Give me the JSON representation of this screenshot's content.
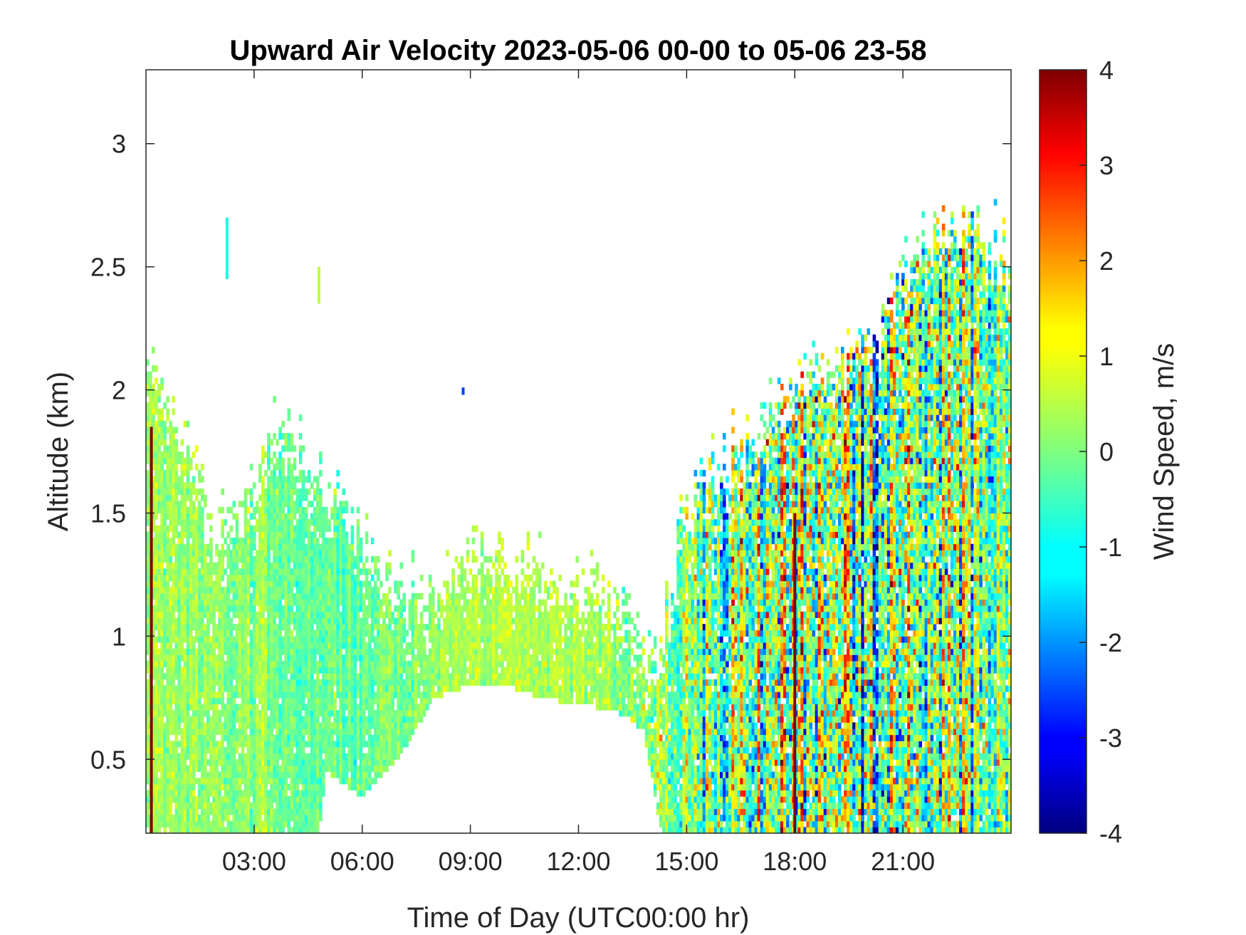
{
  "chart_data": {
    "type": "heatmap",
    "title": "Upward Air Velocity 2023-05-06 00-00 to 05-06 23-58",
    "xlabel": "Time of Day (UTC00:00 hr)",
    "ylabel": "Altitude (km)",
    "colorbar_label": "Wind Speed, m/s",
    "x_unit": "hours",
    "xlim": [
      0,
      24
    ],
    "ylim": [
      0.2,
      3.3
    ],
    "clim": [
      -4,
      4
    ],
    "colormap": "jet",
    "x_ticks": [
      3,
      6,
      9,
      12,
      15,
      18,
      21
    ],
    "x_tick_labels": [
      "03:00",
      "06:00",
      "09:00",
      "12:00",
      "15:00",
      "18:00",
      "21:00"
    ],
    "y_ticks": [
      0.5,
      1,
      1.5,
      2,
      2.5,
      3
    ],
    "y_tick_labels": [
      "0.5",
      "1",
      "1.5",
      "2",
      "2.5",
      "3"
    ],
    "colorbar_ticks": [
      4,
      3,
      2,
      1,
      0,
      -1,
      -2,
      -3,
      -4
    ],
    "colorbar_tick_labels": [
      "4",
      "3",
      "2",
      "1",
      "0",
      "-1",
      "-2",
      "-3",
      "-4"
    ],
    "grid": false,
    "data_top_envelope": {
      "x": [
        0,
        0.3,
        1.0,
        2.0,
        3.0,
        3.8,
        4.5,
        5.5,
        6.5,
        7.5,
        9.0,
        10.5,
        11.5,
        12.5,
        13.5,
        14.3,
        14.8,
        15.5,
        16.5,
        17.5,
        18.5,
        19.5,
        20.5,
        21.5,
        22.5,
        23.3,
        24.0
      ],
      "top_km": [
        2.3,
        2.15,
        1.9,
        1.55,
        1.7,
        2.0,
        1.75,
        1.65,
        1.4,
        1.25,
        1.45,
        1.4,
        1.3,
        1.35,
        1.15,
        1.05,
        1.5,
        1.75,
        1.85,
        2.0,
        2.2,
        2.3,
        2.4,
        2.7,
        2.8,
        2.75,
        2.6
      ]
    },
    "data_bottom_envelope": {
      "x": [
        0,
        4.8,
        5.0,
        6.0,
        7.0,
        8.0,
        9.0,
        10.0,
        11.0,
        12.0,
        13.0,
        13.8,
        14.3,
        24.0
      ],
      "bottom_km": [
        0.2,
        0.2,
        0.45,
        0.35,
        0.5,
        0.75,
        0.8,
        0.8,
        0.75,
        0.72,
        0.7,
        0.62,
        0.2,
        0.2
      ]
    },
    "mean_speed_ms": {
      "x": [
        0,
        3,
        6,
        9,
        12,
        14.5,
        16,
        18,
        20,
        22,
        24
      ],
      "value": [
        0.3,
        0.0,
        -0.2,
        0.4,
        0.4,
        0.0,
        -0.3,
        0.2,
        0.0,
        0.1,
        0.2
      ]
    },
    "variability_ms": {
      "x": [
        0,
        3,
        6,
        9,
        12,
        14.5,
        16,
        18,
        20,
        22,
        24
      ],
      "value": [
        0.35,
        0.35,
        0.35,
        0.3,
        0.3,
        0.7,
        1.3,
        1.6,
        1.6,
        1.5,
        1.0
      ]
    },
    "notable_features": [
      {
        "x": 0.15,
        "y_range": [
          0.2,
          1.85
        ],
        "value_ms": 4
      },
      {
        "x": 2.25,
        "y_range": [
          2.45,
          2.7
        ],
        "value_ms": -0.8
      },
      {
        "x": 4.8,
        "y_range": [
          2.35,
          2.5
        ],
        "value_ms": 0.5
      },
      {
        "x": 8.8,
        "y_range": [
          1.98,
          2.01
        ],
        "value_ms": -2.5
      },
      {
        "x": 18.0,
        "y_range": [
          0.2,
          1.5
        ],
        "value_ms": 4
      }
    ]
  }
}
